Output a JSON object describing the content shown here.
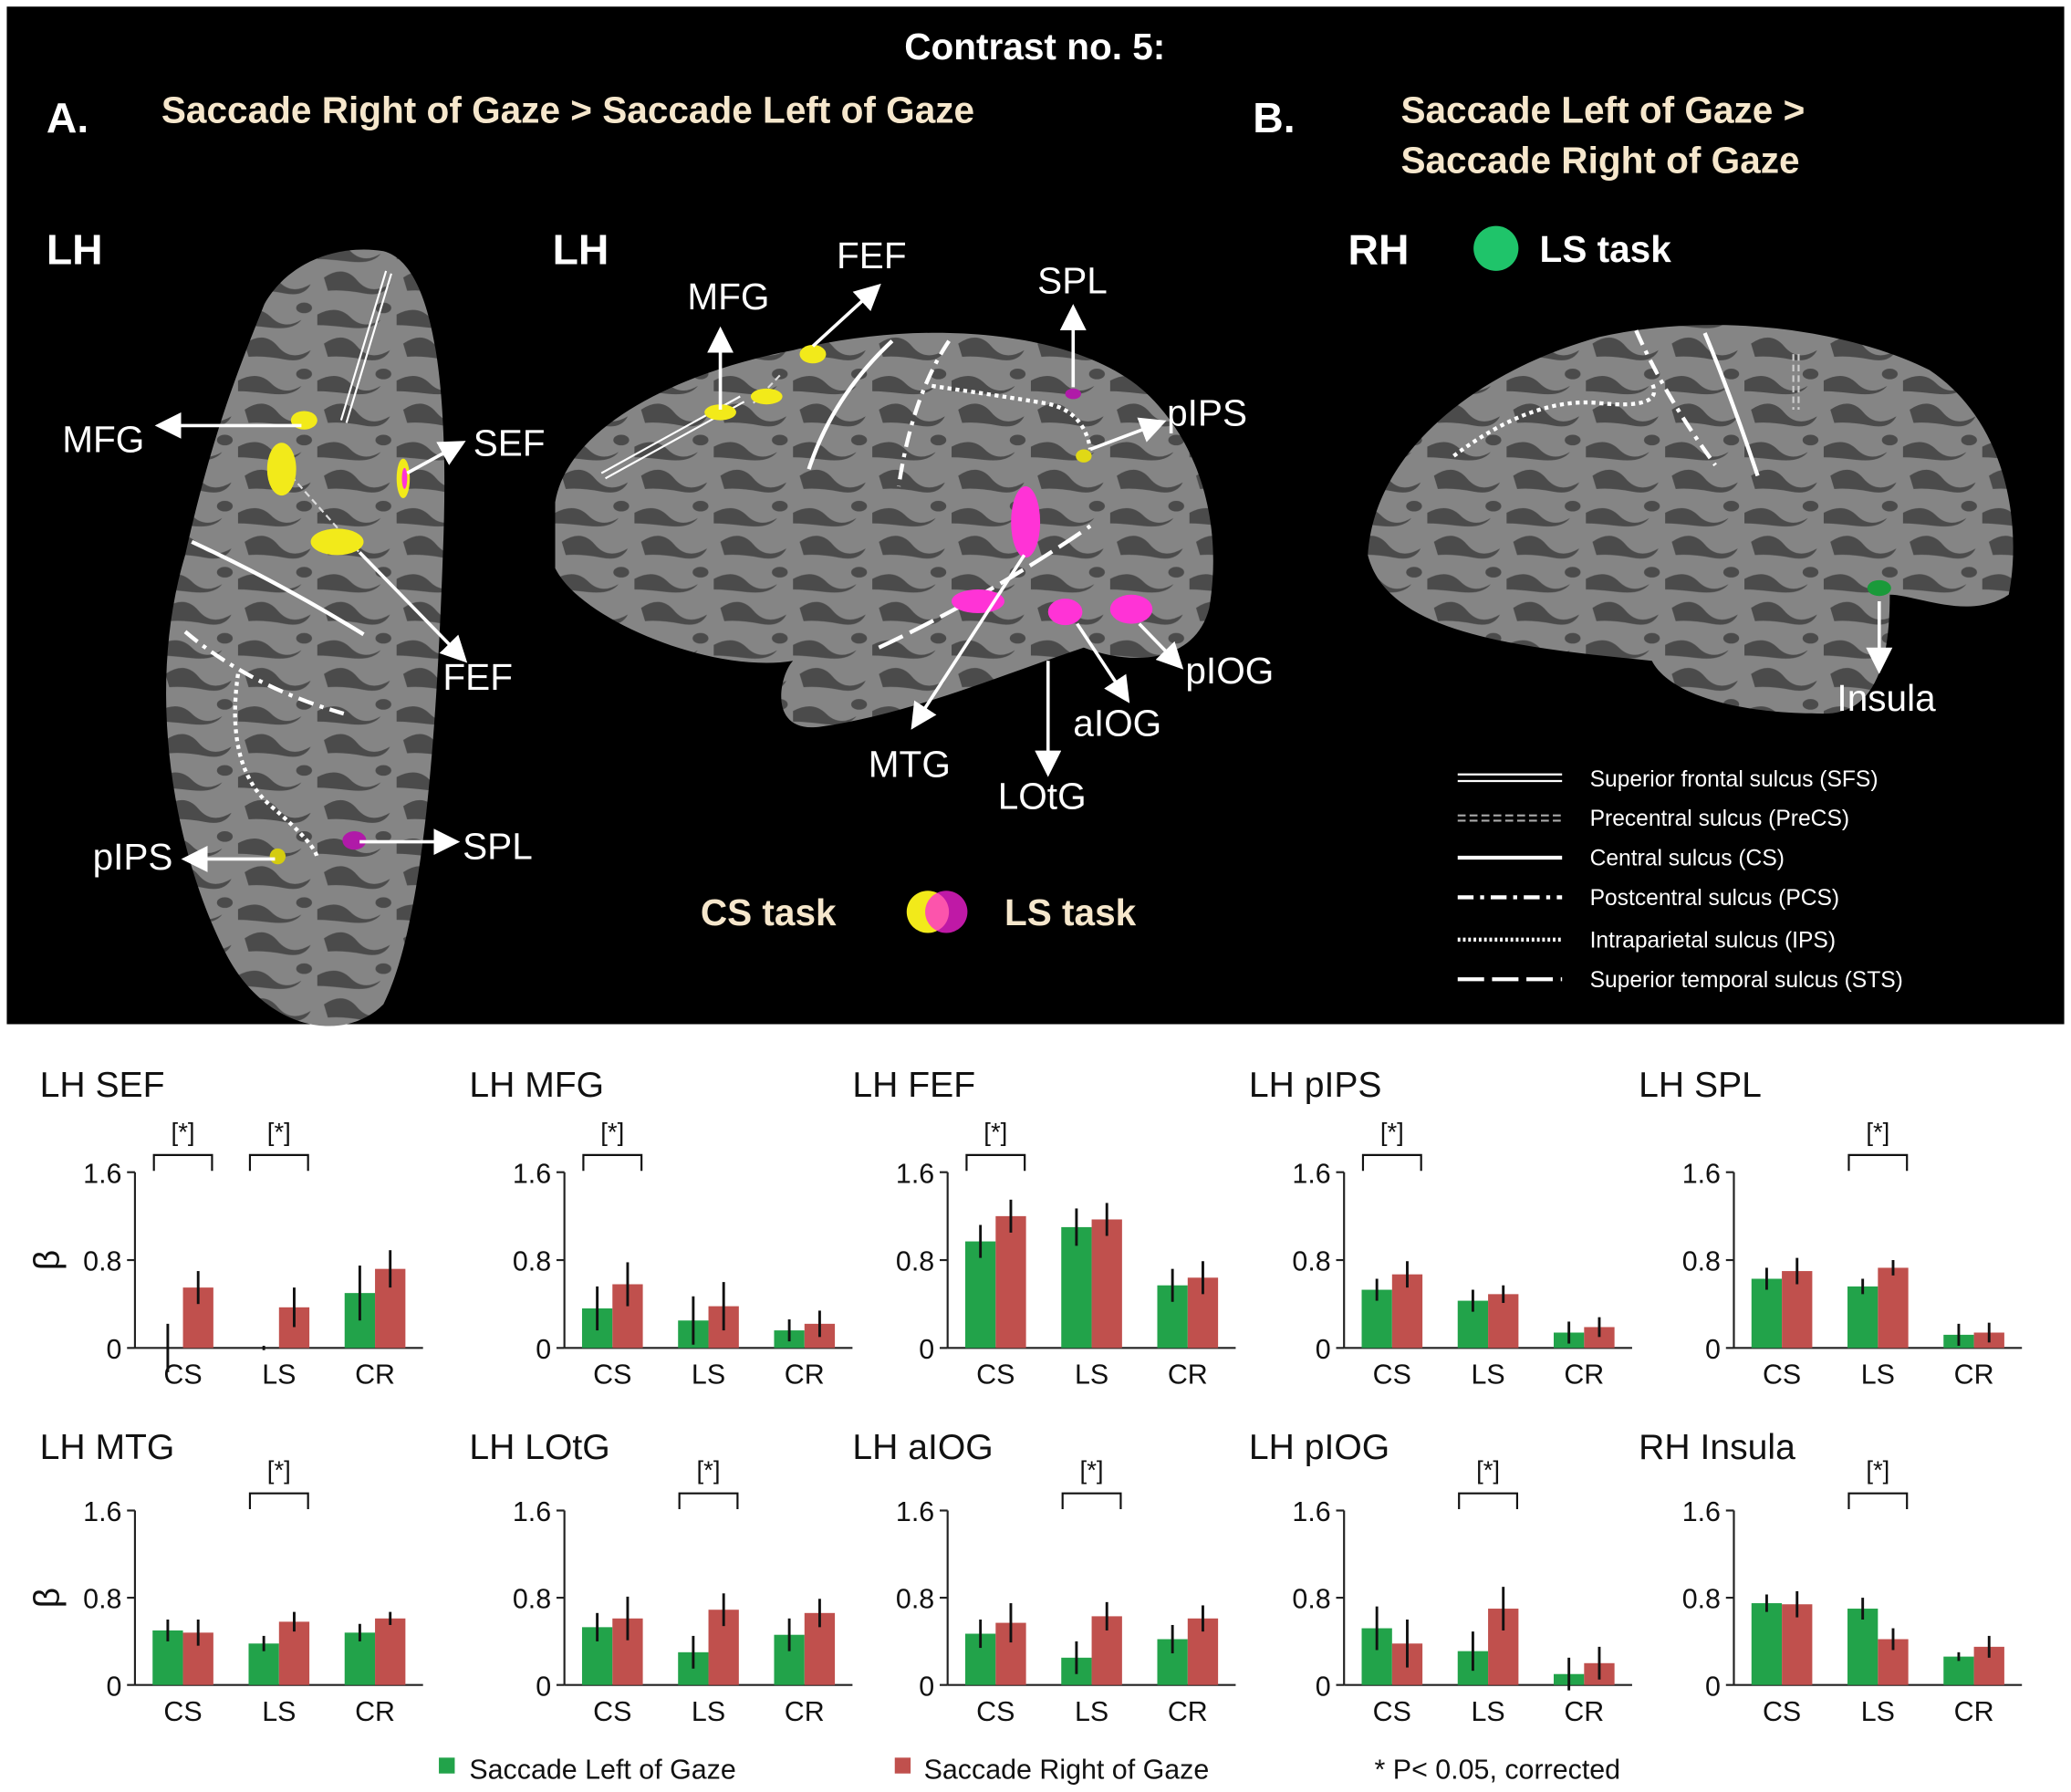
{
  "header": {
    "title": "Contrast no. 5:"
  },
  "panel_a": {
    "letter": "A.",
    "heading": "Saccade Right of Gaze > Saccade Left of Gaze",
    "view1": "LH",
    "view1_labels": [
      "MFG",
      "SEF",
      "FEF",
      "pIPS",
      "SPL"
    ],
    "view2": "LH",
    "view2_labels": [
      "MFG",
      "FEF",
      "SPL",
      "pIPS",
      "MTG",
      "aIOG",
      "LOtG",
      "pIOG"
    ],
    "cs_task": "CS task",
    "ls_task": "LS task"
  },
  "panel_b": {
    "letter": "B.",
    "heading_lines": [
      "Saccade Left of Gaze >",
      "Saccade Right of Gaze"
    ],
    "view": "RH",
    "task": "LS task",
    "labels": [
      "Insula"
    ]
  },
  "sulcus_legend": [
    "Superior frontal sulcus (SFS)",
    "Precentral sulcus (PreCS)",
    "Central sulcus (CS)",
    "Postcentral sulcus (PCS)",
    "Intraparietal sulcus (IPS)",
    "Superior temporal sulcus (STS)"
  ],
  "series_legend": [
    {
      "name": "Saccade Left of Gaze",
      "color": "#22a34a"
    },
    {
      "name": "Saccade Right of Gaze",
      "color": "#c0504d"
    }
  ],
  "note": "* P< 0.05, corrected",
  "chart_data": [
    {
      "type": "bar",
      "title": "LH SEF",
      "ylabel": "β",
      "categories": [
        "CS",
        "LS",
        "CR"
      ],
      "ylim": [
        0,
        1.6
      ],
      "yticks": [
        0,
        0.8,
        1.6
      ],
      "marker": "[*]",
      "significant": [
        true,
        true,
        false
      ],
      "series": [
        {
          "values": [
            0,
            0,
            0.5
          ],
          "errors": [
            0.22,
            0.02,
            0.25
          ]
        },
        {
          "values": [
            0.55,
            0.37,
            0.72
          ],
          "errors": [
            0.15,
            0.18,
            0.17
          ]
        }
      ]
    },
    {
      "type": "bar",
      "title": "LH MFG",
      "categories": [
        "CS",
        "LS",
        "CR"
      ],
      "ylim": [
        0,
        1.6
      ],
      "yticks": [
        0,
        0.8,
        1.6
      ],
      "marker": "[*]",
      "significant": [
        true,
        false,
        false
      ],
      "series": [
        {
          "values": [
            0.36,
            0.25,
            0.16
          ],
          "errors": [
            0.2,
            0.22,
            0.1
          ]
        },
        {
          "values": [
            0.58,
            0.38,
            0.22
          ],
          "errors": [
            0.2,
            0.22,
            0.12
          ]
        }
      ]
    },
    {
      "type": "bar",
      "title": "LH FEF",
      "categories": [
        "CS",
        "LS",
        "CR"
      ],
      "ylim": [
        0,
        1.6
      ],
      "yticks": [
        0,
        0.8,
        1.6
      ],
      "marker": "[*]",
      "significant": [
        true,
        false,
        false
      ],
      "series": [
        {
          "values": [
            0.97,
            1.1,
            0.57
          ],
          "errors": [
            0.15,
            0.17,
            0.15
          ]
        },
        {
          "values": [
            1.2,
            1.17,
            0.64
          ],
          "errors": [
            0.15,
            0.15,
            0.15
          ]
        }
      ]
    },
    {
      "type": "bar",
      "title": "LH pIPS",
      "categories": [
        "CS",
        "LS",
        "CR"
      ],
      "ylim": [
        0,
        1.6
      ],
      "yticks": [
        0,
        0.8,
        1.6
      ],
      "marker": "[*]",
      "significant": [
        true,
        false,
        false
      ],
      "series": [
        {
          "values": [
            0.53,
            0.43,
            0.14
          ],
          "errors": [
            0.1,
            0.1,
            0.1
          ]
        },
        {
          "values": [
            0.67,
            0.49,
            0.19
          ],
          "errors": [
            0.12,
            0.08,
            0.09
          ]
        }
      ]
    },
    {
      "type": "bar",
      "title": "LH SPL",
      "categories": [
        "CS",
        "LS",
        "CR"
      ],
      "ylim": [
        0,
        1.6
      ],
      "yticks": [
        0,
        0.8,
        1.6
      ],
      "marker": "[*]",
      "significant": [
        false,
        true,
        false
      ],
      "series": [
        {
          "values": [
            0.63,
            0.56,
            0.12
          ],
          "errors": [
            0.1,
            0.07,
            0.1
          ]
        },
        {
          "values": [
            0.7,
            0.73,
            0.14
          ],
          "errors": [
            0.12,
            0.07,
            0.09
          ]
        }
      ]
    },
    {
      "type": "bar",
      "title": "LH MTG",
      "ylabel": "β",
      "categories": [
        "CS",
        "LS",
        "CR"
      ],
      "ylim": [
        0,
        1.6
      ],
      "yticks": [
        0,
        0.8,
        1.6
      ],
      "marker": "[*]",
      "significant": [
        false,
        true,
        false
      ],
      "series": [
        {
          "values": [
            0.5,
            0.38,
            0.48
          ],
          "errors": [
            0.1,
            0.07,
            0.08
          ]
        },
        {
          "values": [
            0.48,
            0.58,
            0.61
          ],
          "errors": [
            0.12,
            0.09,
            0.06
          ]
        }
      ]
    },
    {
      "type": "bar",
      "title": "LH LOtG",
      "categories": [
        "CS",
        "LS",
        "CR"
      ],
      "ylim": [
        0,
        1.6
      ],
      "yticks": [
        0,
        0.8,
        1.6
      ],
      "marker": "[*]",
      "significant": [
        false,
        true,
        false
      ],
      "series": [
        {
          "values": [
            0.53,
            0.3,
            0.46
          ],
          "errors": [
            0.13,
            0.15,
            0.15
          ]
        },
        {
          "values": [
            0.61,
            0.69,
            0.66
          ],
          "errors": [
            0.2,
            0.15,
            0.13
          ]
        }
      ]
    },
    {
      "type": "bar",
      "title": "LH aIOG",
      "categories": [
        "CS",
        "LS",
        "CR"
      ],
      "ylim": [
        0,
        1.6
      ],
      "yticks": [
        0,
        0.8,
        1.6
      ],
      "marker": "[*]",
      "significant": [
        false,
        true,
        false
      ],
      "series": [
        {
          "values": [
            0.47,
            0.25,
            0.42
          ],
          "errors": [
            0.13,
            0.15,
            0.13
          ]
        },
        {
          "values": [
            0.57,
            0.63,
            0.61
          ],
          "errors": [
            0.18,
            0.13,
            0.12
          ]
        }
      ]
    },
    {
      "type": "bar",
      "title": "LH pIOG",
      "categories": [
        "CS",
        "LS",
        "CR"
      ],
      "ylim": [
        0,
        1.6
      ],
      "yticks": [
        0,
        0.8,
        1.6
      ],
      "marker": "[*]",
      "significant": [
        false,
        true,
        false
      ],
      "series": [
        {
          "values": [
            0.52,
            0.31,
            0.1
          ],
          "errors": [
            0.2,
            0.18,
            0.15
          ]
        },
        {
          "values": [
            0.38,
            0.7,
            0.2
          ],
          "errors": [
            0.22,
            0.2,
            0.15
          ]
        }
      ]
    },
    {
      "type": "bar",
      "title": "RH Insula",
      "categories": [
        "CS",
        "LS",
        "CR"
      ],
      "ylim": [
        0,
        1.6
      ],
      "yticks": [
        0,
        0.8,
        1.6
      ],
      "marker": "[*]",
      "significant": [
        false,
        true,
        false
      ],
      "series": [
        {
          "values": [
            0.75,
            0.7,
            0.26
          ],
          "errors": [
            0.08,
            0.1,
            0.04
          ]
        },
        {
          "values": [
            0.74,
            0.42,
            0.35
          ],
          "errors": [
            0.12,
            0.1,
            0.1
          ]
        }
      ]
    }
  ]
}
